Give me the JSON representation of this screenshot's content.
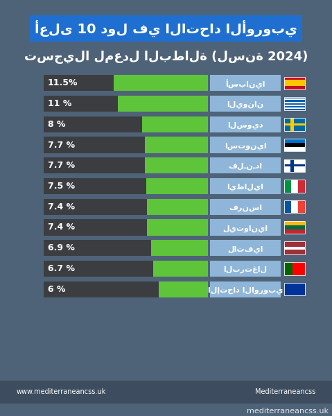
{
  "chart_data": {
    "type": "bar",
    "orientation": "horizontal",
    "title": "أعلى 10 دول في الاتحاد الأوروبي",
    "subtitle": "تسجيلا لمعدل البطالة (لسنة 2024)",
    "categories": [
      "أسبانيا",
      "اليونان",
      "السويد",
      "استونيا",
      "فلـنـدا",
      "ايطاليا",
      "فرنسا",
      "ليتوانيا",
      "لاتفيا",
      "البرتغال",
      "الإتحاد الاوروبي"
    ],
    "values": [
      11.5,
      11,
      8,
      7.7,
      7.7,
      7.5,
      7.4,
      7.4,
      6.9,
      6.7,
      6
    ],
    "value_labels": [
      "11.5%",
      "11 %",
      "8 %",
      "7.7 %",
      "7.7 %",
      "7.5 %",
      "7.4 %",
      "7.4 %",
      "6.9 %",
      "6.7 %",
      "6 %"
    ],
    "data_labels": true,
    "color": "#5ec43a",
    "xlim": [
      0,
      20
    ],
    "xticks": [],
    "tick_labels": "y",
    "grid": false,
    "annotations": [
      "www.mediterraneancss.uk",
      "Mediterraneancss",
      "mediterraneancss.uk"
    ]
  }
}
